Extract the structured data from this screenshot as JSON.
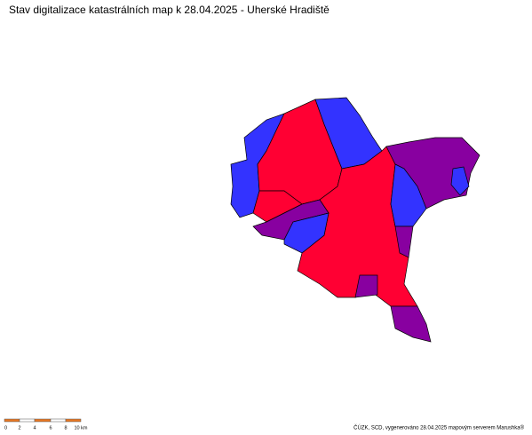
{
  "title": "Stav digitalizace katastrálních map k 28.04.2025 - Uherské Hradiště",
  "scale_labels": [
    "0",
    "2",
    "4",
    "6",
    "8",
    "10 km"
  ],
  "credit": "ČÚZK, SCD, vygenerováno 28.04.2025 mapovým serverem Marushka®"
}
